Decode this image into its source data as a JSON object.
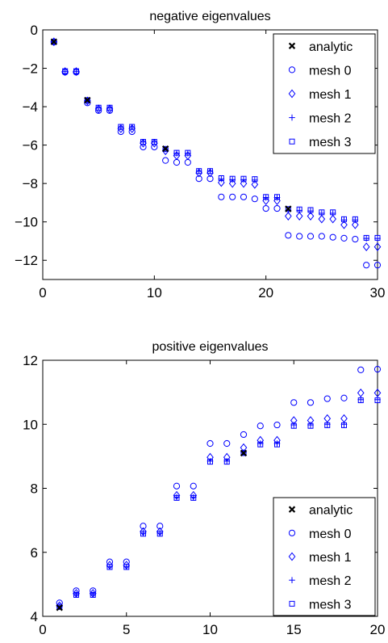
{
  "chart_data": [
    {
      "type": "scatter",
      "title": "negative eigenvalues",
      "xlabel": "",
      "ylabel": "",
      "xlim": [
        0,
        30
      ],
      "ylim": [
        -13,
        0
      ],
      "xticks": [
        0,
        10,
        20,
        30
      ],
      "yticks": [
        0,
        -2,
        -4,
        -6,
        -8,
        -10,
        -12
      ],
      "grid": false,
      "legend_position": "top-right",
      "series": [
        {
          "name": "analytic",
          "marker": "x",
          "color": "#000000",
          "x": [
            1,
            4,
            11,
            22
          ],
          "y": [
            -0.62,
            -3.66,
            -6.19,
            -9.32
          ]
        },
        {
          "name": "mesh 0",
          "marker": "circle",
          "color": "#0000ff",
          "x": [
            1,
            2,
            3,
            4,
            5,
            6,
            7,
            8,
            9,
            10,
            11,
            12,
            13,
            14,
            15,
            16,
            17,
            18,
            19,
            20,
            21,
            22,
            23,
            24,
            25,
            26,
            27,
            28,
            29,
            30
          ],
          "y": [
            -0.63,
            -2.2,
            -2.2,
            -3.8,
            -4.2,
            -4.2,
            -5.3,
            -5.3,
            -6.1,
            -6.1,
            -6.8,
            -6.9,
            -6.9,
            -7.75,
            -7.75,
            -8.7,
            -8.7,
            -8.7,
            -8.8,
            -9.3,
            -9.3,
            -10.7,
            -10.75,
            -10.75,
            -10.75,
            -10.8,
            -10.85,
            -10.9,
            -12.25,
            -12.25
          ]
        },
        {
          "name": "mesh 1",
          "marker": "diamond",
          "color": "#0000ff",
          "x": [
            1,
            2,
            3,
            4,
            5,
            6,
            7,
            8,
            9,
            10,
            11,
            12,
            13,
            14,
            15,
            16,
            17,
            18,
            19,
            20,
            21,
            22,
            23,
            24,
            25,
            26,
            27,
            28,
            29,
            30
          ],
          "y": [
            -0.62,
            -2.17,
            -2.17,
            -3.7,
            -4.12,
            -4.12,
            -5.15,
            -5.15,
            -5.9,
            -5.9,
            -6.3,
            -6.55,
            -6.55,
            -7.45,
            -7.45,
            -7.95,
            -8.0,
            -8.0,
            -8.05,
            -8.9,
            -8.9,
            -9.7,
            -9.7,
            -9.7,
            -9.85,
            -9.85,
            -10.15,
            -10.15,
            -11.3,
            -11.3
          ]
        },
        {
          "name": "mesh 2",
          "marker": "plus",
          "color": "#0000ff",
          "x": [
            1,
            2,
            3,
            4,
            5,
            6,
            7,
            8,
            9,
            10,
            11,
            12,
            13,
            14,
            15,
            16,
            17,
            18,
            19,
            20,
            21,
            22,
            23,
            24,
            25,
            26,
            27,
            28,
            29,
            30
          ],
          "y": [
            -0.62,
            -2.16,
            -2.16,
            -3.67,
            -4.06,
            -4.06,
            -5.06,
            -5.06,
            -5.84,
            -5.84,
            -6.21,
            -6.43,
            -6.43,
            -7.36,
            -7.36,
            -7.77,
            -7.8,
            -7.8,
            -7.82,
            -8.73,
            -8.73,
            -9.4,
            -9.4,
            -9.43,
            -9.55,
            -9.55,
            -9.9,
            -9.9,
            -10.86,
            -10.86
          ]
        },
        {
          "name": "mesh 3",
          "marker": "square",
          "color": "#0000ff",
          "x": [
            1,
            2,
            3,
            4,
            5,
            6,
            7,
            8,
            9,
            10,
            11,
            12,
            13,
            14,
            15,
            16,
            17,
            18,
            19,
            20,
            21,
            22,
            23,
            24,
            25,
            26,
            27,
            28,
            29,
            30
          ],
          "y": [
            -0.62,
            -2.15,
            -2.15,
            -3.66,
            -4.05,
            -4.05,
            -5.05,
            -5.05,
            -5.83,
            -5.83,
            -6.2,
            -6.4,
            -6.4,
            -7.35,
            -7.35,
            -7.72,
            -7.75,
            -7.75,
            -7.77,
            -8.7,
            -8.7,
            -9.33,
            -9.35,
            -9.38,
            -9.5,
            -9.5,
            -9.86,
            -9.86,
            -10.83,
            -10.83
          ]
        }
      ]
    },
    {
      "type": "scatter",
      "title": "positive eigenvalues",
      "xlabel": "",
      "ylabel": "",
      "xlim": [
        0,
        20
      ],
      "ylim": [
        4,
        12
      ],
      "xticks": [
        0,
        5,
        10,
        15,
        20
      ],
      "yticks": [
        4,
        6,
        8,
        10,
        12
      ],
      "grid": false,
      "legend_position": "bottom-right",
      "series": [
        {
          "name": "analytic",
          "marker": "x",
          "color": "#000000",
          "x": [
            1,
            12
          ],
          "y": [
            4.27,
            9.1
          ]
        },
        {
          "name": "mesh 0",
          "marker": "circle",
          "color": "#0000ff",
          "x": [
            1,
            2,
            3,
            4,
            5,
            6,
            7,
            8,
            9,
            10,
            11,
            12,
            13,
            14,
            15,
            16,
            17,
            18,
            19,
            20
          ],
          "y": [
            4.42,
            4.8,
            4.8,
            5.7,
            5.7,
            6.82,
            6.82,
            8.07,
            8.07,
            9.4,
            9.4,
            9.68,
            9.95,
            9.98,
            10.68,
            10.68,
            10.8,
            10.82,
            11.7,
            11.72
          ]
        },
        {
          "name": "mesh 1",
          "marker": "diamond",
          "color": "#0000ff",
          "x": [
            1,
            2,
            3,
            4,
            5,
            6,
            7,
            8,
            9,
            10,
            11,
            12,
            13,
            14,
            15,
            16,
            17,
            18,
            19,
            20
          ],
          "y": [
            4.33,
            4.72,
            4.72,
            5.6,
            5.6,
            6.65,
            6.65,
            7.78,
            7.78,
            8.97,
            8.97,
            9.27,
            9.5,
            9.5,
            10.12,
            10.12,
            10.18,
            10.18,
            10.98,
            10.98
          ]
        },
        {
          "name": "mesh 2",
          "marker": "plus",
          "color": "#0000ff",
          "x": [
            1,
            2,
            3,
            4,
            5,
            6,
            7,
            8,
            9,
            10,
            11,
            12,
            13,
            14,
            15,
            16,
            17,
            18,
            19,
            20
          ],
          "y": [
            4.3,
            4.68,
            4.68,
            5.55,
            5.55,
            6.6,
            6.6,
            7.72,
            7.72,
            8.85,
            8.85,
            9.12,
            9.4,
            9.4,
            9.98,
            9.98,
            10.0,
            10.0,
            10.77,
            10.77
          ]
        },
        {
          "name": "mesh 3",
          "marker": "square",
          "color": "#0000ff",
          "x": [
            1,
            2,
            3,
            4,
            5,
            6,
            7,
            8,
            9,
            10,
            11,
            12,
            13,
            14,
            15,
            16,
            17,
            18,
            19,
            20
          ],
          "y": [
            4.3,
            4.67,
            4.67,
            5.54,
            5.54,
            6.58,
            6.58,
            7.7,
            7.7,
            8.83,
            8.83,
            9.1,
            9.37,
            9.37,
            9.95,
            9.95,
            9.97,
            9.97,
            10.75,
            10.75
          ]
        }
      ]
    }
  ]
}
